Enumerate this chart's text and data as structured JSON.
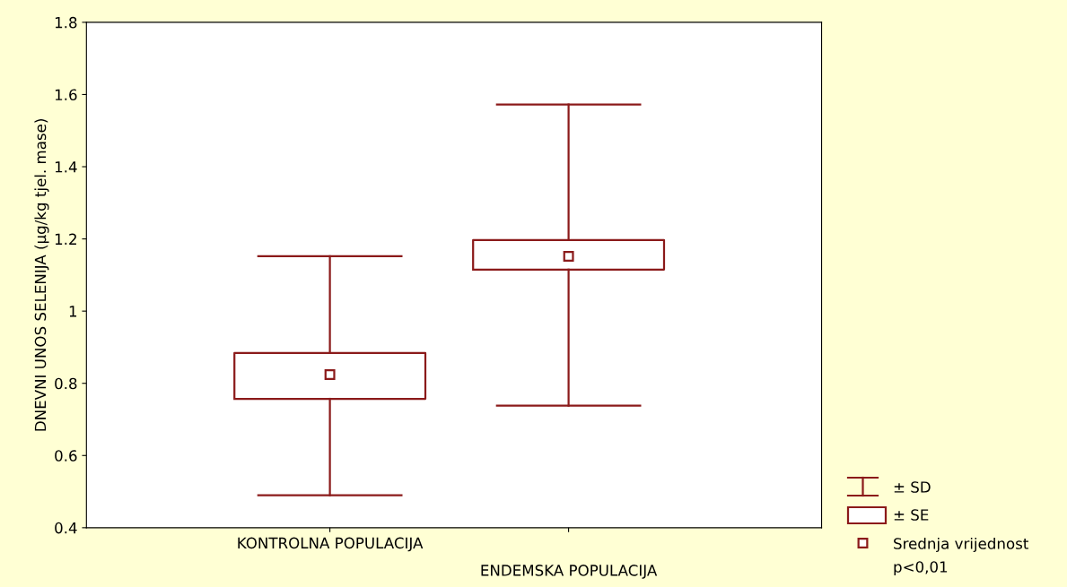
{
  "chart_data": {
    "type": "box",
    "ylabel": "DNEVNI UNOS SELENIJA (µg/kg tjel. mase)",
    "categories": [
      "KONTROLNA POPULACIJA",
      "ENDEMSKA POPULACIJA"
    ],
    "series": [
      {
        "color": "#8b1a1a",
        "boxes": [
          {
            "low": 0.49,
            "q1": 0.757,
            "q3": 0.884,
            "high": 1.152,
            "mean": 0.824
          },
          {
            "low": 0.738,
            "q1": 1.115,
            "q3": 1.197,
            "high": 1.572,
            "mean": 1.152
          }
        ]
      }
    ],
    "ylim": [
      0.4,
      1.8
    ],
    "yticks": [
      0.4,
      0.6,
      0.8,
      1,
      1.2,
      1.4,
      1.6,
      1.8
    ],
    "grid": false,
    "marker": "square",
    "annotations": [
      "± SD",
      "± SE",
      "Srednja vrijednost",
      "p<0,01"
    ]
  }
}
